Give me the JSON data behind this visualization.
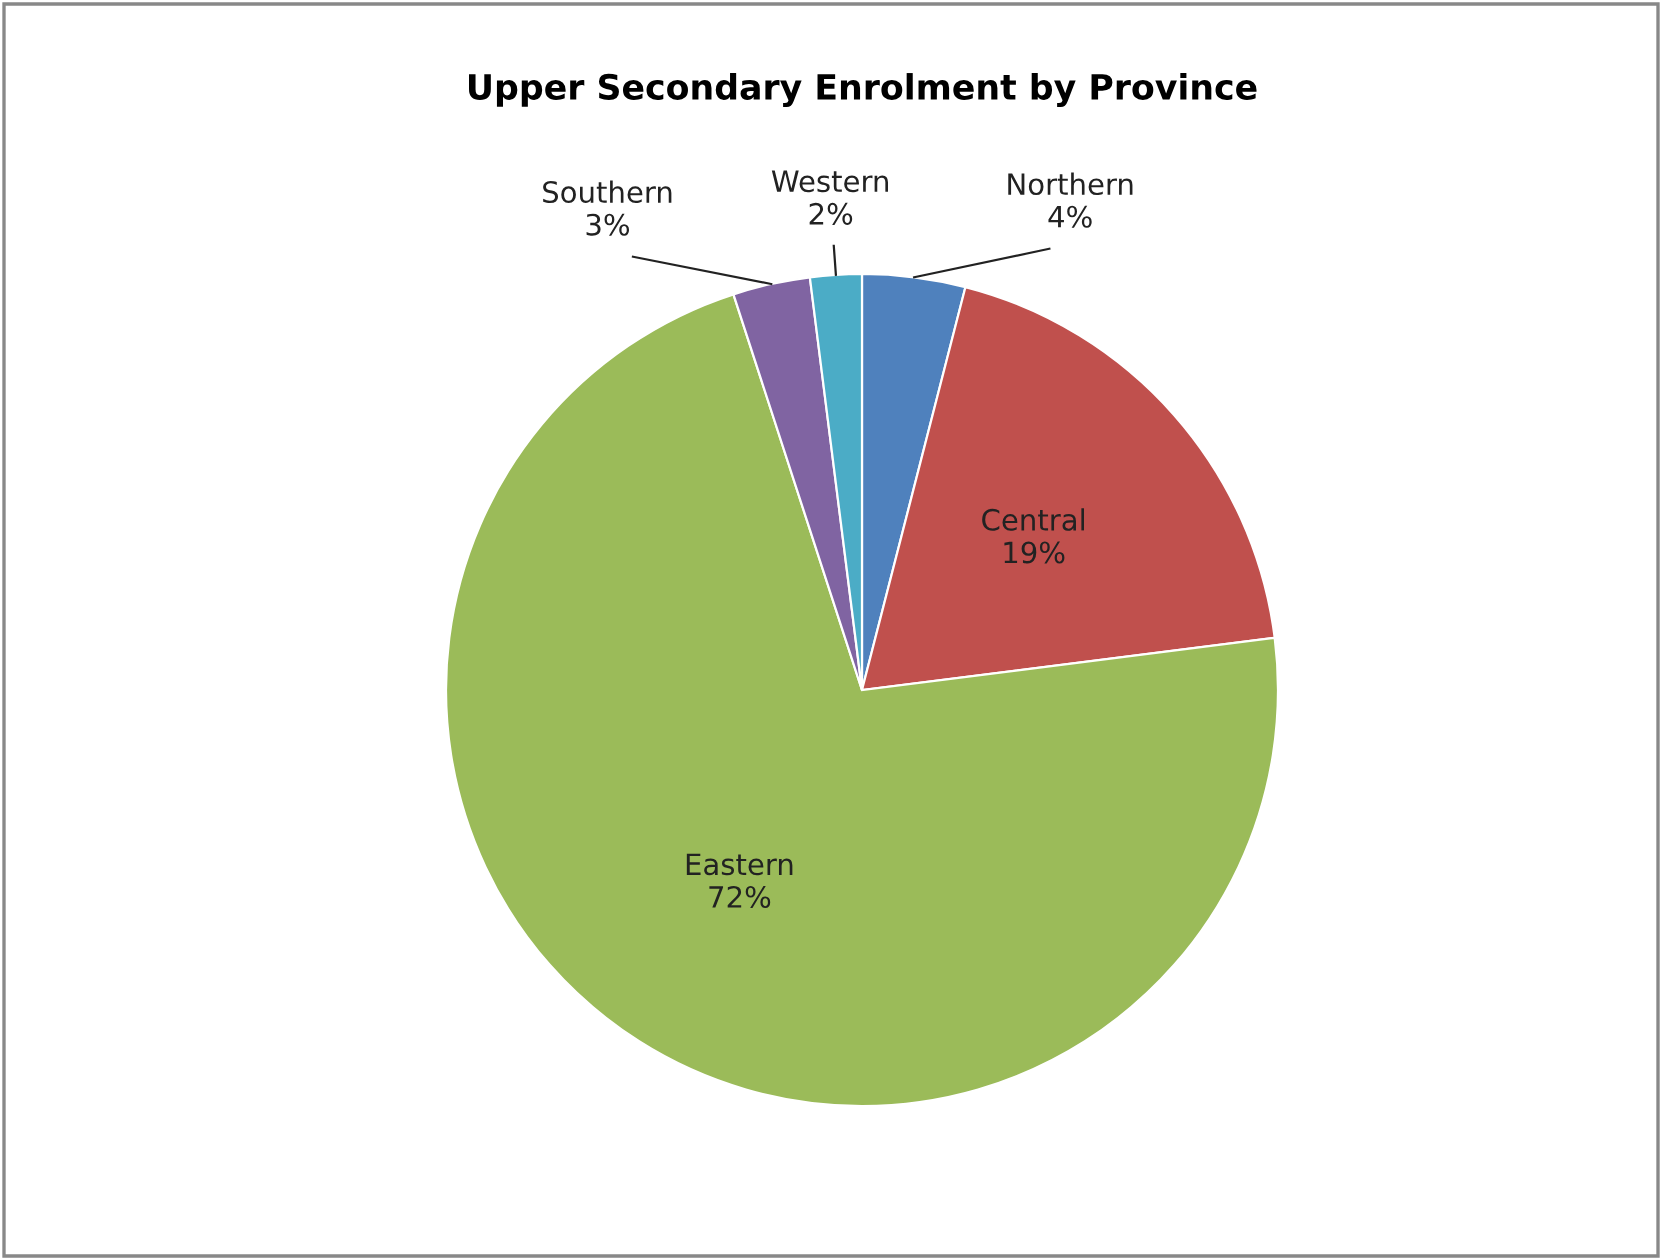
{
  "chart_data": {
    "type": "pie",
    "title": "Upper Secondary Enrolment by Province",
    "categories": [
      "Northern",
      "Central",
      "Eastern",
      "Southern",
      "Western"
    ],
    "values": [
      4,
      19,
      72,
      3,
      2
    ],
    "value_labels": [
      "4%",
      "19%",
      "72%",
      "3%",
      "2%"
    ],
    "colors": [
      "#4f81bd",
      "#c0504d",
      "#9bbb59",
      "#8064a2",
      "#4bacc6"
    ],
    "legend": false
  }
}
